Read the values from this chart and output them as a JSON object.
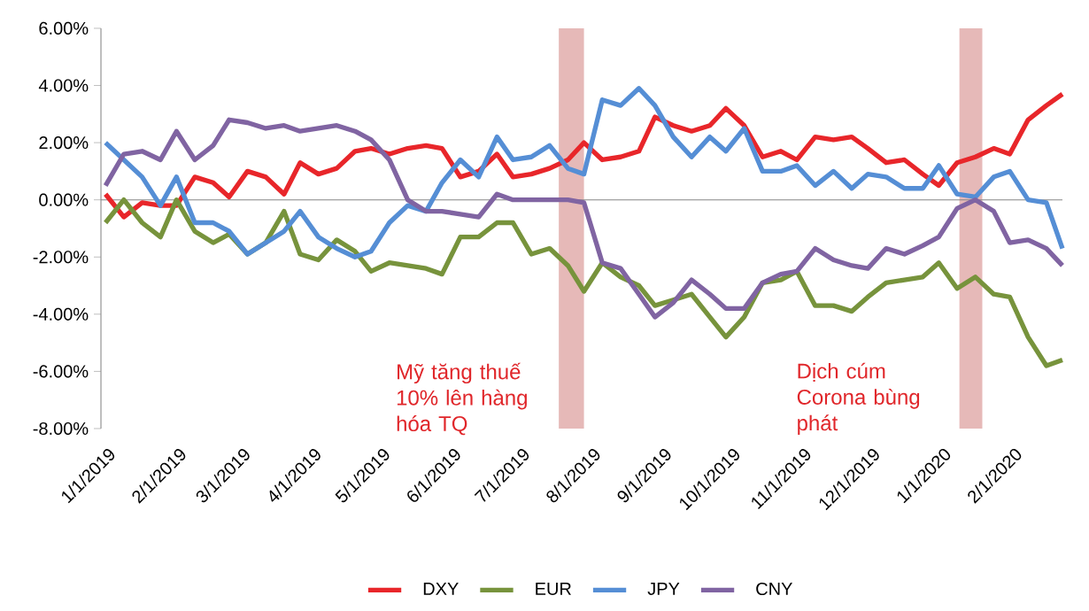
{
  "chart_data": {
    "type": "line",
    "x": [
      "2019-01-03",
      "2019-01-11",
      "2019-01-19",
      "2019-01-27",
      "2019-02-03",
      "2019-02-11",
      "2019-02-19",
      "2019-02-26",
      "2019-03-06",
      "2019-03-14",
      "2019-03-22",
      "2019-03-29",
      "2019-04-06",
      "2019-04-14",
      "2019-04-22",
      "2019-04-29",
      "2019-05-07",
      "2019-05-15",
      "2019-05-23",
      "2019-05-30",
      "2019-06-07",
      "2019-06-15",
      "2019-06-23",
      "2019-06-30",
      "2019-07-08",
      "2019-07-16",
      "2019-07-24",
      "2019-07-31",
      "2019-08-08",
      "2019-08-16",
      "2019-08-24",
      "2019-08-31",
      "2019-09-08",
      "2019-09-16",
      "2019-09-24",
      "2019-10-01",
      "2019-10-09",
      "2019-10-17",
      "2019-10-25",
      "2019-11-01",
      "2019-11-09",
      "2019-11-17",
      "2019-11-25",
      "2019-12-02",
      "2019-12-10",
      "2019-12-18",
      "2019-12-26",
      "2020-01-02",
      "2020-01-10",
      "2020-01-18",
      "2020-01-26",
      "2020-02-02",
      "2020-02-10",
      "2020-02-18",
      "2020-02-25"
    ],
    "series": [
      {
        "name": "DXY",
        "color": "#e8262a",
        "values": [
          0.2,
          -0.6,
          -0.1,
          -0.2,
          -0.2,
          0.8,
          0.6,
          0.1,
          1.0,
          0.8,
          0.2,
          1.3,
          0.9,
          1.1,
          1.7,
          1.8,
          1.6,
          1.8,
          1.9,
          1.8,
          0.8,
          1.0,
          1.6,
          0.8,
          0.9,
          1.1,
          1.4,
          2.0,
          1.4,
          1.5,
          1.7,
          2.9,
          2.6,
          2.4,
          2.6,
          3.2,
          2.6,
          1.5,
          1.7,
          1.4,
          2.2,
          2.1,
          2.2,
          1.8,
          1.3,
          1.4,
          0.9,
          0.5,
          1.3,
          1.5,
          1.8,
          1.6,
          2.8,
          3.3,
          3.7
        ]
      },
      {
        "name": "EUR",
        "color": "#77933c",
        "values": [
          -0.8,
          0.0,
          -0.8,
          -1.3,
          0.0,
          -1.1,
          -1.5,
          -1.2,
          -1.9,
          -1.5,
          -0.4,
          -1.9,
          -2.1,
          -1.4,
          -1.8,
          -2.5,
          -2.2,
          -2.3,
          -2.4,
          -2.6,
          -1.3,
          -1.3,
          -0.8,
          -0.8,
          -1.9,
          -1.7,
          -2.3,
          -3.2,
          -2.2,
          -2.7,
          -3.0,
          -3.7,
          -3.5,
          -3.3,
          -4.1,
          -4.8,
          -4.1,
          -2.9,
          -2.8,
          -2.5,
          -3.7,
          -3.7,
          -3.9,
          -3.4,
          -2.9,
          -2.8,
          -2.7,
          -2.2,
          -3.1,
          -2.7,
          -3.3,
          -3.4,
          -4.8,
          -5.8,
          -5.6
        ]
      },
      {
        "name": "JPY",
        "color": "#558ed5",
        "values": [
          2.0,
          1.4,
          0.8,
          -0.2,
          0.8,
          -0.8,
          -0.8,
          -1.1,
          -1.9,
          -1.5,
          -1.1,
          -0.4,
          -1.3,
          -1.7,
          -2.0,
          -1.8,
          -0.8,
          -0.2,
          -0.4,
          0.6,
          1.4,
          0.8,
          2.2,
          1.4,
          1.5,
          1.9,
          1.1,
          0.9,
          3.5,
          3.3,
          3.9,
          3.3,
          2.2,
          1.5,
          2.2,
          1.7,
          2.5,
          1.0,
          1.0,
          1.2,
          0.5,
          1.0,
          0.4,
          0.9,
          0.8,
          0.4,
          0.4,
          1.2,
          0.2,
          0.1,
          0.8,
          1.0,
          0.0,
          -0.1,
          -1.7
        ]
      },
      {
        "name": "CNY",
        "color": "#8064a2",
        "values": [
          0.5,
          1.6,
          1.7,
          1.4,
          2.4,
          1.4,
          1.9,
          2.8,
          2.7,
          2.5,
          2.6,
          2.4,
          2.5,
          2.6,
          2.4,
          2.1,
          1.4,
          0.0,
          -0.4,
          -0.4,
          -0.5,
          -0.6,
          0.2,
          0.0,
          0.0,
          0.0,
          0.0,
          -0.1,
          -2.2,
          -2.4,
          -3.3,
          -4.1,
          -3.6,
          -2.8,
          -3.3,
          -3.8,
          -3.8,
          -2.9,
          -2.6,
          -2.5,
          -1.7,
          -2.1,
          -2.3,
          -2.4,
          -1.7,
          -1.9,
          -1.6,
          -1.3,
          -0.3,
          0.0,
          -0.4,
          -1.5,
          -1.4,
          -1.7,
          -2.3
        ]
      }
    ],
    "xlim": [
      "2019-01-01",
      "2020-02-25"
    ],
    "xticks": [
      {
        "value": "2019-01-01",
        "label": "1/1/2019"
      },
      {
        "value": "2019-02-01",
        "label": "2/1/2019"
      },
      {
        "value": "2019-03-01",
        "label": "3/1/2019"
      },
      {
        "value": "2019-04-01",
        "label": "4/1/2019"
      },
      {
        "value": "2019-05-01",
        "label": "5/1/2019"
      },
      {
        "value": "2019-06-01",
        "label": "6/1/2019"
      },
      {
        "value": "2019-07-01",
        "label": "7/1/2019"
      },
      {
        "value": "2019-08-01",
        "label": "8/1/2019"
      },
      {
        "value": "2019-09-01",
        "label": "9/1/2019"
      },
      {
        "value": "2019-10-01",
        "label": "10/1/2019"
      },
      {
        "value": "2019-11-01",
        "label": "11/1/2019"
      },
      {
        "value": "2019-12-01",
        "label": "12/1/2019"
      },
      {
        "value": "2020-01-01",
        "label": "1/1/2020"
      },
      {
        "value": "2020-02-01",
        "label": "2/1/2020"
      }
    ],
    "ylim": [
      -8,
      6
    ],
    "yticks": [
      {
        "value": -8,
        "label": "-8.00%"
      },
      {
        "value": -6,
        "label": "-6.00%"
      },
      {
        "value": -4,
        "label": "-4.00%"
      },
      {
        "value": -2,
        "label": "-2.00%"
      },
      {
        "value": 0,
        "label": "0.00%"
      },
      {
        "value": 2,
        "label": "2.00%"
      },
      {
        "value": 4,
        "label": "4.00%"
      },
      {
        "value": 6,
        "label": "6.00%"
      }
    ],
    "bands": [
      {
        "axis": "x",
        "from": "2019-07-20",
        "to": "2019-07-31",
        "label": "Mỹ tăng thuế 10% lên hàng hóa TQ",
        "color": "#e6b9b8"
      },
      {
        "axis": "x",
        "from": "2020-01-11",
        "to": "2020-01-21",
        "label": "Dịch cúm Corona bùng phát",
        "color": "#e6b9b8"
      }
    ],
    "ref_lines": [
      {
        "axis": "y",
        "value": 0,
        "color": "#868686"
      }
    ],
    "legend": "bottom",
    "grid": false,
    "line_style": "solid",
    "marker": "none"
  }
}
